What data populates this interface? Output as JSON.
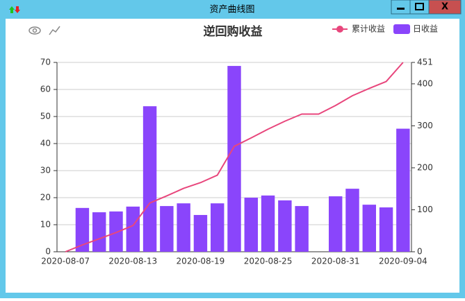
{
  "window": {
    "title": "资产曲线图",
    "close": "X"
  },
  "chart_data": {
    "type": "bar-line",
    "title": "逆回购收益",
    "categories": [
      "2020-08-07",
      null,
      null,
      null,
      "2020-08-13",
      null,
      null,
      null,
      "2020-08-19",
      null,
      null,
      null,
      "2020-08-25",
      null,
      null,
      null,
      "2020-08-31",
      null,
      null,
      null,
      "2020-09-04"
    ],
    "series": [
      {
        "name": "累计收益",
        "type": "line",
        "axis": "y2",
        "color": "#e8467c",
        "values": [
          0,
          16.2,
          30.8,
          45.7,
          62.4,
          116.2,
          133.1,
          151,
          164.6,
          182.5,
          251.2,
          271.2,
          292,
          311,
          327.9,
          327.9,
          348.4,
          371.7,
          389.1,
          405.5,
          451
        ]
      },
      {
        "name": "日收益",
        "type": "bar",
        "color": "#8a45fb",
        "values": [
          null,
          16.2,
          14.6,
          14.9,
          16.7,
          53.8,
          16.9,
          17.9,
          13.6,
          17.9,
          68.7,
          20,
          20.8,
          19,
          16.9,
          null,
          20.5,
          23.3,
          17.4,
          16.4,
          45.5
        ]
      }
    ],
    "ylim": [
      0,
      70
    ],
    "yticks": [
      0,
      10,
      20,
      30,
      40,
      50,
      60,
      70
    ],
    "y2lim": [
      0,
      451
    ],
    "y2ticks": [
      0,
      100,
      200,
      300,
      400,
      451
    ],
    "grid": true,
    "legend": "top-right"
  }
}
